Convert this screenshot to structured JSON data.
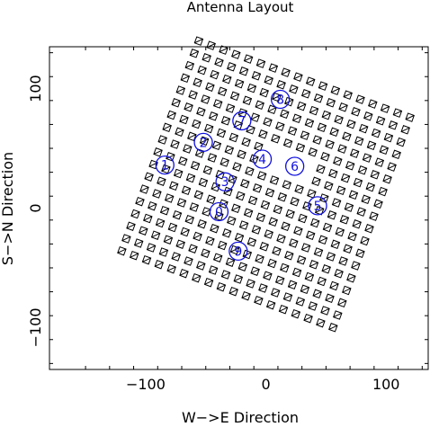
{
  "chart_data": {
    "type": "scatter",
    "title": "Antenna Layout",
    "xlabel": "W−>E Direction",
    "ylabel": "S−>N Direction",
    "xlim": [
      -180,
      135
    ],
    "ylim": [
      -135,
      135
    ],
    "xticks": [
      -100,
      0,
      100
    ],
    "yticks": [
      -100,
      0,
      100
    ],
    "xtick_labels": [
      "−100",
      "0",
      "100"
    ],
    "ytick_labels": [
      "−100",
      "0",
      "100"
    ],
    "grid": false,
    "antenna_grid": {
      "rows": 18,
      "cols": 18,
      "spacing": 11,
      "rotation_deg": -20,
      "center": [
        0,
        20
      ],
      "central_gap": [
        [
          -1,
          1
        ],
        [
          -1,
          2
        ],
        [
          0,
          1
        ],
        [
          0,
          2
        ],
        [
          1,
          1
        ],
        [
          1,
          2
        ],
        [
          2,
          1
        ],
        [
          2,
          2
        ]
      ]
    },
    "pads": [
      {
        "label": "1",
        "x": -84,
        "y": 36
      },
      {
        "label": "2",
        "x": -52,
        "y": 55
      },
      {
        "label": "3",
        "x": -34,
        "y": 22
      },
      {
        "label": "4",
        "x": -3,
        "y": 41
      },
      {
        "label": "5",
        "x": 43,
        "y": 2
      },
      {
        "label": "6",
        "x": 24,
        "y": 35
      },
      {
        "label": "7",
        "x": -20,
        "y": 73
      },
      {
        "label": "8",
        "x": 12,
        "y": 91
      },
      {
        "label": "9",
        "x": -23,
        "y": -36
      },
      {
        "label": "0",
        "x": -39,
        "y": -3
      }
    ],
    "colors": {
      "antenna": "#000000",
      "pad": "#1010e0"
    }
  }
}
